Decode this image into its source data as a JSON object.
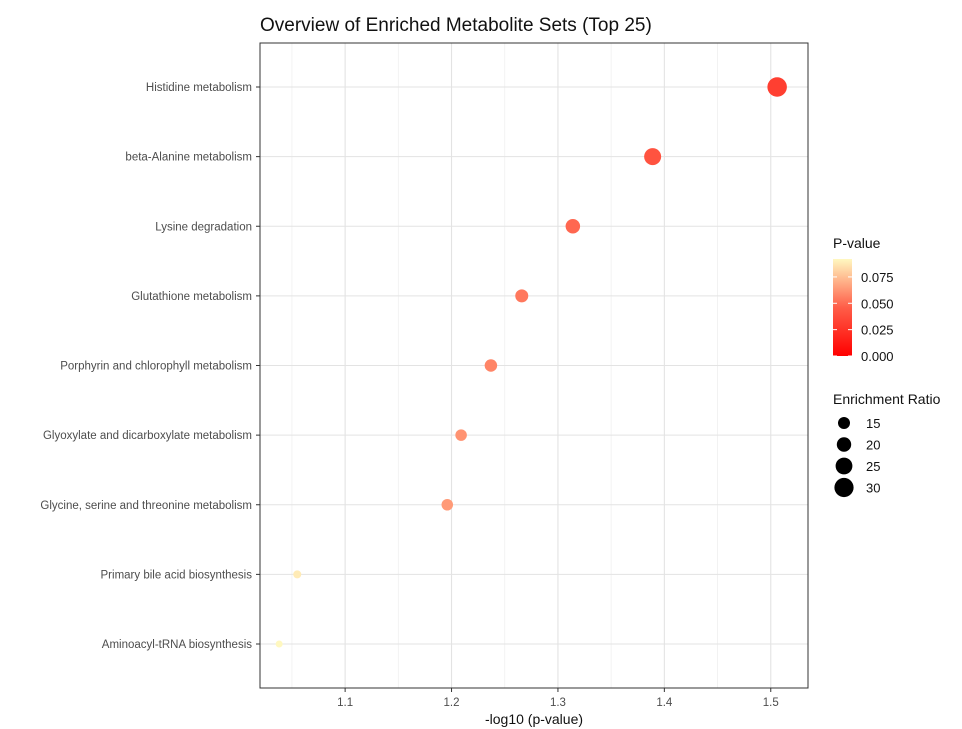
{
  "chart_data": {
    "type": "scatter",
    "title": "Overview of Enriched Metabolite Sets (Top 25)",
    "xlabel": "-log10 (p-value)",
    "ylabel": "",
    "xlim": [
      1.02,
      1.535
    ],
    "xticks": [
      1.1,
      1.2,
      1.3,
      1.4,
      1.5
    ],
    "xtick_labels": [
      "1.1",
      "1.2",
      "1.3",
      "1.4",
      "1.5"
    ],
    "grid": true,
    "categories": [
      "Histidine metabolism",
      "beta-Alanine metabolism",
      "Lysine degradation",
      "Glutathione metabolism",
      "Porphyrin and chlorophyll metabolism",
      "Glyoxylate and dicarboxylate metabolism",
      "Glycine, serine and threonine metabolism",
      "Primary bile acid biosynthesis",
      "Aminoacyl-tRNA biosynthesis"
    ],
    "points": [
      {
        "label": "Histidine metabolism",
        "x": 1.506,
        "p_value": 0.031,
        "enrichment_ratio": 32
      },
      {
        "label": "beta-Alanine metabolism",
        "x": 1.389,
        "p_value": 0.041,
        "enrichment_ratio": 27
      },
      {
        "label": "Lysine degradation",
        "x": 1.314,
        "p_value": 0.049,
        "enrichment_ratio": 22
      },
      {
        "label": "Glutathione metabolism",
        "x": 1.266,
        "p_value": 0.054,
        "enrichment_ratio": 19
      },
      {
        "label": "Porphyrin and chlorophyll metabolism",
        "x": 1.237,
        "p_value": 0.058,
        "enrichment_ratio": 18
      },
      {
        "label": "Glyoxylate and dicarboxylate metabolism",
        "x": 1.209,
        "p_value": 0.062,
        "enrichment_ratio": 16
      },
      {
        "label": "Glycine, serine and threonine metabolism",
        "x": 1.196,
        "p_value": 0.064,
        "enrichment_ratio": 16
      },
      {
        "label": "Primary bile acid biosynthesis",
        "x": 1.055,
        "p_value": 0.088,
        "enrichment_ratio": 9
      },
      {
        "label": "Aminoacyl-tRNA biosynthesis",
        "x": 1.038,
        "p_value": 0.092,
        "enrichment_ratio": 7
      }
    ],
    "legend_color": {
      "title": "P-value",
      "ticks": [
        0.0,
        0.025,
        0.05,
        0.075
      ],
      "tick_labels": [
        "0.000",
        "0.025",
        "0.050",
        "0.075"
      ],
      "range": [
        0.0,
        0.092
      ],
      "colors": [
        "#ff0000",
        "#fff8c0"
      ]
    },
    "legend_size": {
      "title": "Enrichment Ratio",
      "values": [
        15,
        20,
        25,
        30
      ],
      "labels": [
        "15",
        "20",
        "25",
        "30"
      ]
    },
    "legend_position": "right"
  }
}
